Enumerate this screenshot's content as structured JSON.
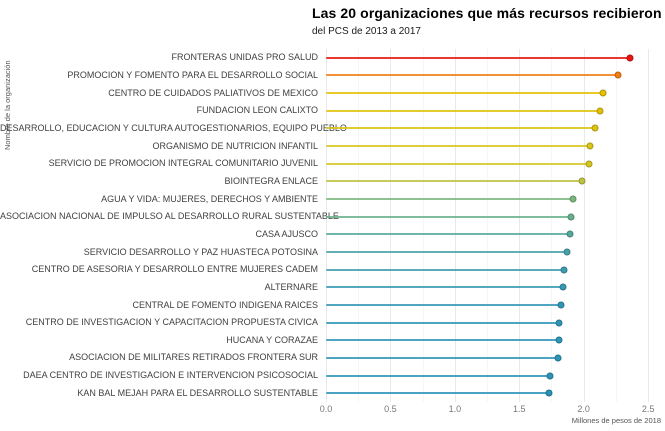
{
  "header": {
    "title": "Las 20 organizaciones que más recursos recibieron",
    "subtitle": "del PCS de 2013 a 2017"
  },
  "chart_data": {
    "type": "bar",
    "style": "lollipop",
    "orientation": "horizontal",
    "title": "Las 20 organizaciones que más recursos recibieron",
    "subtitle": "del PCS de 2013 a 2017",
    "xlabel": "Millones de pesos de 2018",
    "ylabel": "Nombre de la organización",
    "categories": [
      "FRONTERAS UNIDAS PRO SALUD",
      "PROMOCION Y FOMENTO PARA EL DESARROLLO SOCIAL",
      "CENTRO DE CUIDADOS PALIATIVOS DE MEXICO",
      "FUNDACION LEON CALIXTO",
      "DESARROLLO, EDUCACION Y CULTURA AUTOGESTIONARIOS, EQUIPO PUEBLO",
      "ORGANISMO DE NUTRICION INFANTIL",
      "SERVICIO DE PROMOCION INTEGRAL COMUNITARIO JUVENIL",
      "BIOINTEGRA ENLACE",
      "AGUA Y VIDA: MUJERES, DERECHOS Y AMBIENTE",
      "ASOCIACION NACIONAL DE IMPULSO AL DESARROLLO RURAL SUSTENTABLE",
      "CASA AJUSCO",
      "SERVICIO DESARROLLO Y PAZ HUASTECA POTOSINA",
      "CENTRO DE ASESORIA Y DESARROLLO ENTRE MUJERES CADEM",
      "ALTERNARE",
      "CENTRAL DE FOMENTO INDIGENA RAICES",
      "CENTRO DE INVESTIGACION Y CAPACITACION PROPUESTA CIVICA",
      "HUCANA Y CORAZAE",
      "ASOCIACION DE MILITARES RETIRADOS FRONTERA SUR",
      "DAEA CENTRO DE INVESTIGACION E INTERVENCION PSICOSOCIAL",
      "KAN BAL MEJAH PARA EL DESARROLLO SUSTENTABLE"
    ],
    "values": [
      2.36,
      2.27,
      2.15,
      2.13,
      2.09,
      2.05,
      2.04,
      1.99,
      1.92,
      1.9,
      1.89,
      1.87,
      1.85,
      1.84,
      1.82,
      1.81,
      1.81,
      1.8,
      1.74,
      1.73
    ],
    "colors": [
      "#e81410",
      "#ef7d10",
      "#e4bf06",
      "#e1c108",
      "#dcc310",
      "#d7c51a",
      "#d4c520",
      "#bdc241",
      "#7ab780",
      "#68b08d",
      "#57a89a",
      "#47a1aa",
      "#3d9cb0",
      "#3598b4",
      "#3196b5",
      "#2f95b6",
      "#2f95b6",
      "#2e94b6",
      "#2b92b7",
      "#2a91b7"
    ],
    "xlim": [
      0,
      2.6
    ],
    "xticks": [
      0.0,
      0.5,
      1.0,
      1.5,
      2.0,
      2.5
    ],
    "xtick_labels": [
      "0.0",
      "0.5",
      "1.0",
      "1.5",
      "2.0",
      "2.5"
    ],
    "grid": true,
    "grid_color_major": "#e9e9e9",
    "grid_color_minor": "#f6f6f6",
    "legend": "none",
    "label_color": "#3f3f3f",
    "tick_color": "#777777"
  }
}
